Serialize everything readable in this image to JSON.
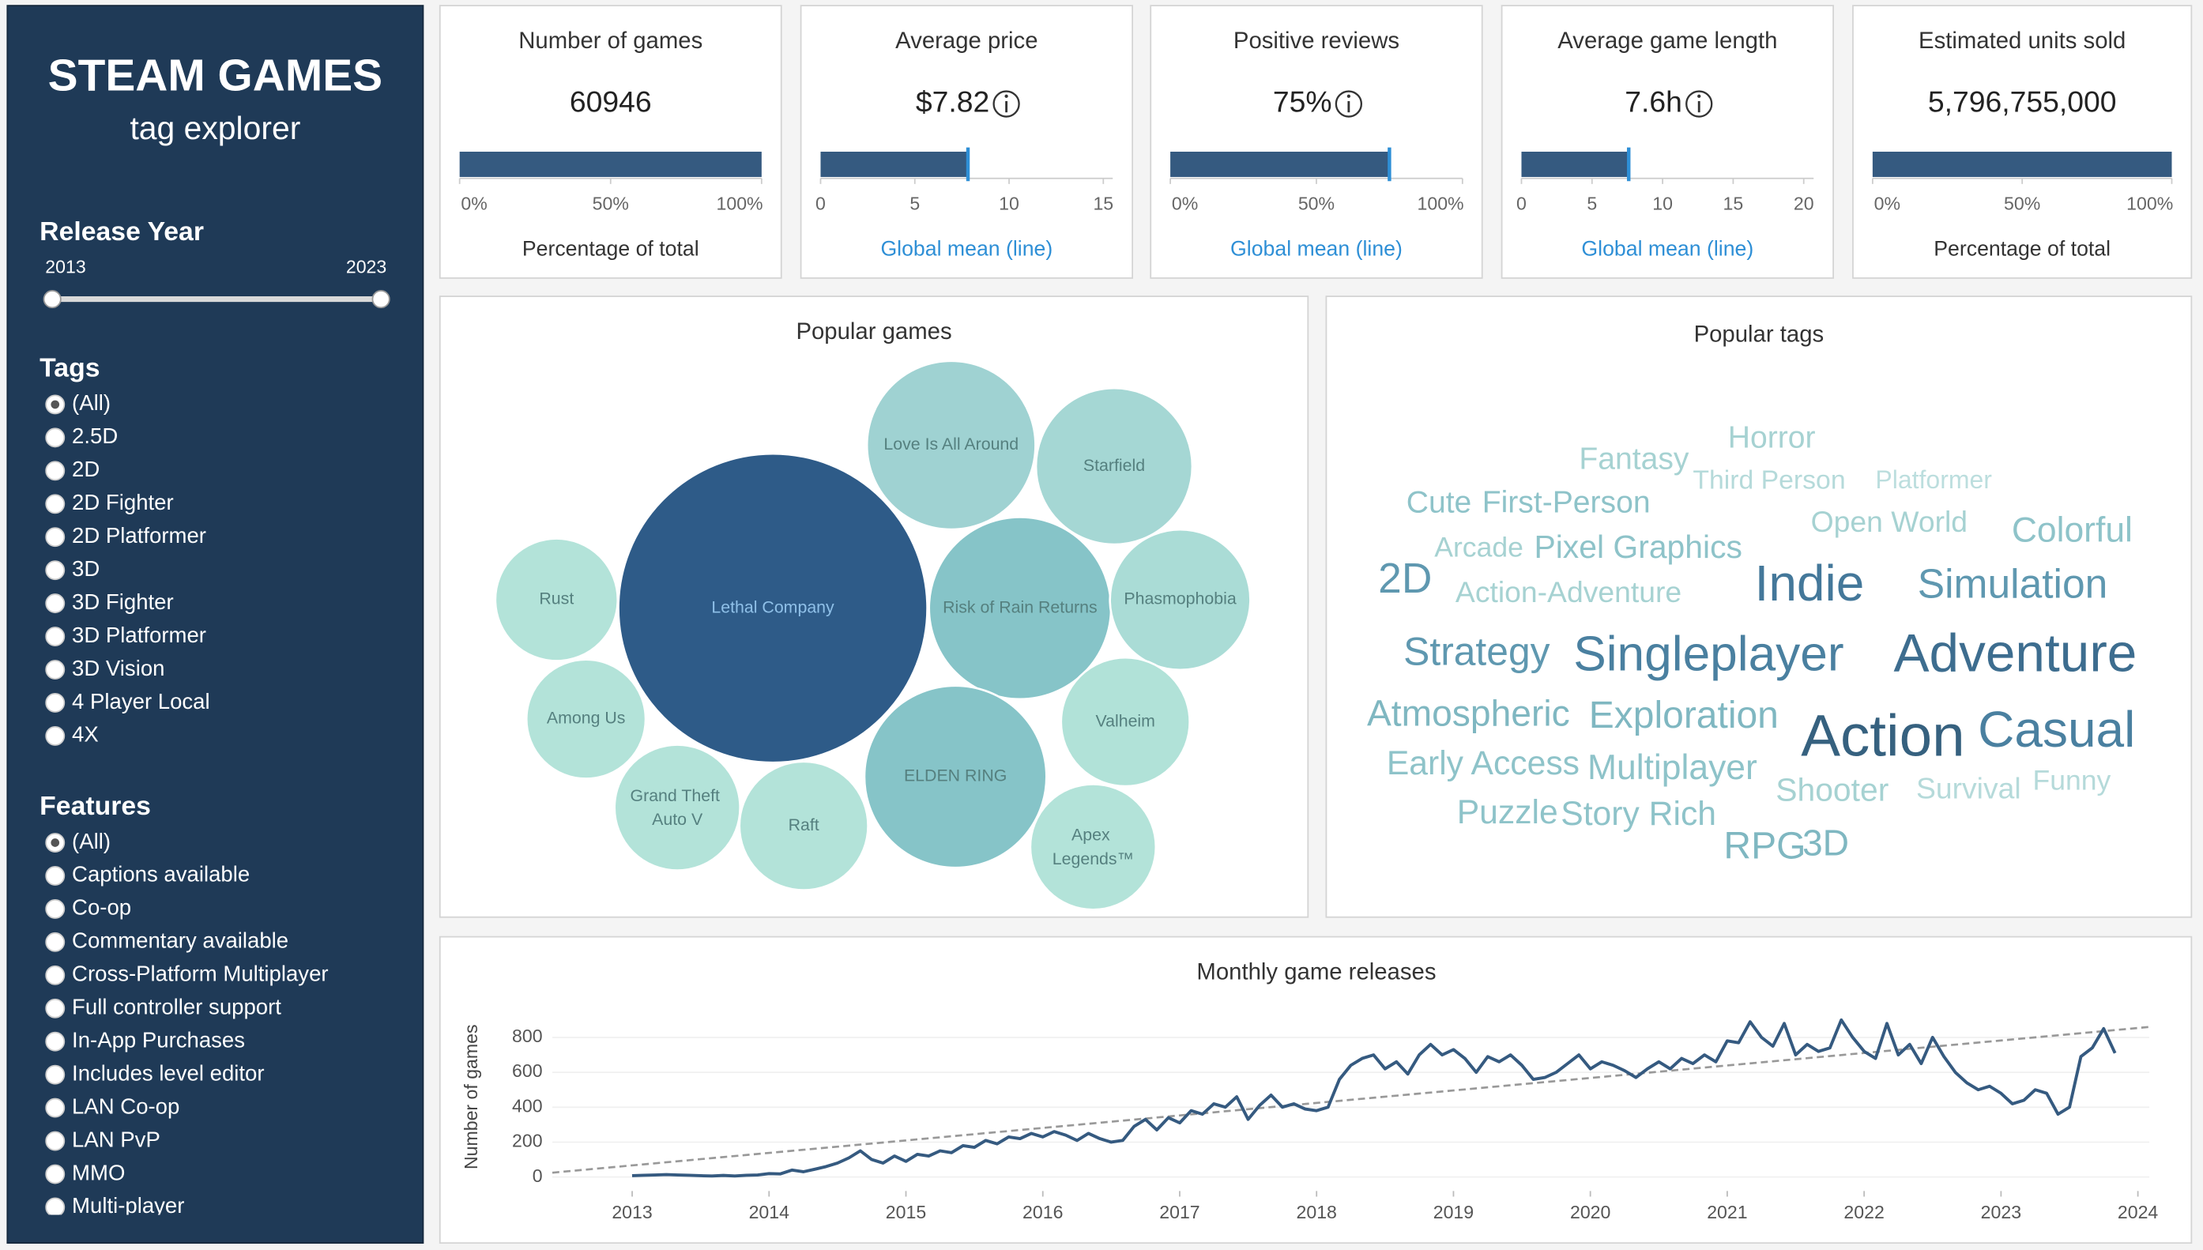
{
  "sidebar": {
    "title": "STEAM GAMES",
    "subtitle": "tag explorer",
    "release_year": {
      "label": "Release Year",
      "range": [
        2013,
        2023
      ]
    },
    "tags": {
      "label": "Tags",
      "selected": 0,
      "options": [
        "(All)",
        "2.5D",
        "2D",
        "2D Fighter",
        "2D Platformer",
        "3D",
        "3D Fighter",
        "3D Platformer",
        "3D Vision",
        "4 Player Local",
        "4X"
      ]
    },
    "features": {
      "label": "Features",
      "selected": 0,
      "options": [
        "(All)",
        "Captions available",
        "Co-op",
        "Commentary available",
        "Cross-Platform Multiplayer",
        "Full controller support",
        "In-App Purchases",
        "Includes level editor",
        "LAN Co-op",
        "LAN PvP",
        "MMO",
        "Multi-player"
      ]
    }
  },
  "chart_data": [
    {
      "type": "bullet",
      "title": "Number of games",
      "headline": 60946,
      "values": [
        100
      ],
      "xlim": [
        0,
        100
      ],
      "xticks": [
        {
          "value": 0,
          "label": "0%"
        },
        {
          "value": 50,
          "label": "50%"
        },
        {
          "value": 100,
          "label": "100%"
        }
      ],
      "xlabel": "Percentage of total",
      "color": "#355a80",
      "info": false
    },
    {
      "type": "bullet",
      "title": "Average price",
      "values": [
        7.82
      ],
      "value_labels": [
        "$7.82"
      ],
      "xlim": [
        0,
        15.5
      ],
      "xticks": [
        0,
        5,
        10,
        15
      ],
      "xlabel": "Global mean (line)",
      "color": "#355a80",
      "info": true
    },
    {
      "type": "bullet",
      "title": "Positive reviews",
      "values": [
        75
      ],
      "value_labels": [
        "75%"
      ],
      "xlim": [
        0,
        100
      ],
      "xticks": [
        {
          "value": 0,
          "label": "0%"
        },
        {
          "value": 50,
          "label": "50%"
        },
        {
          "value": 100,
          "label": "100%"
        }
      ],
      "xlabel": "Global mean (line)",
      "color": "#355a80",
      "info": true
    },
    {
      "type": "bullet",
      "title": "Average game length",
      "values": [
        7.6
      ],
      "value_labels": [
        "7.6h"
      ],
      "xlim": [
        0,
        20.7
      ],
      "xticks": [
        0,
        5,
        10,
        15,
        20
      ],
      "xlabel": "Global mean (line)",
      "color": "#355a80",
      "info": true
    },
    {
      "type": "bullet",
      "title": "Estimated units sold",
      "headline": "5,796,755,000",
      "values": [
        100
      ],
      "xlim": [
        0,
        100
      ],
      "xticks": [
        {
          "value": 0,
          "label": "0%"
        },
        {
          "value": 50,
          "label": "50%"
        },
        {
          "value": 100,
          "label": "100%"
        }
      ],
      "xlabel": "Percentage of total",
      "color": "#355a80",
      "info": false
    },
    {
      "type": "bubble",
      "title": "Popular games",
      "categories": [
        "Lethal Company",
        "Risk of Rain Returns",
        "ELDEN RING",
        "Love Is All Around",
        "Starfield",
        "Phasmophobia",
        "Valheim",
        "Rust",
        "Among Us",
        "Grand Theft Auto V",
        "Raft",
        "Apex Legends™"
      ],
      "values": [
        121,
        42,
        42,
        36,
        31,
        25,
        21,
        19,
        18,
        20,
        21,
        20
      ],
      "colors": [
        "#2e5b88",
        "#86c4c8",
        "#86c4c8",
        "#9fd2d2",
        "#a5d7d4",
        "#aadcd6",
        "#b1e2d8",
        "#b3e3d9",
        "#b3e3d9",
        "#b3e3d9",
        "#b3e3d9",
        "#b3e3d9"
      ]
    },
    {
      "type": "wordcloud",
      "title": "Popular tags",
      "categories": [
        "Horror",
        "Fantasy",
        "Third Person",
        "Platformer",
        "Cute",
        "First-Person",
        "Open World",
        "Colorful",
        "Arcade",
        "Pixel Graphics",
        "2D",
        "Action-Adventure",
        "Indie",
        "Simulation",
        "Strategy",
        "Singleplayer",
        "Adventure",
        "Atmospheric",
        "Exploration",
        "Action",
        "Casual",
        "Early Access",
        "Multiplayer",
        "Shooter",
        "Survival",
        "Funny",
        "Puzzle",
        "Story Rich",
        "RPG",
        "3D"
      ],
      "values": [
        22,
        22,
        19,
        18,
        22,
        22,
        21,
        25,
        20,
        23,
        30,
        21,
        36,
        29,
        28,
        35,
        38,
        26,
        27,
        42,
        36,
        24,
        25,
        23,
        21,
        20,
        24,
        24,
        27,
        26
      ],
      "colors": [
        "#a6d2d2",
        "#a6d2d2",
        "#b5dada",
        "#bcdede",
        "#8ec3c9",
        "#8ec3c9",
        "#a6d2d2",
        "#8ec3c9",
        "#a6d2d2",
        "#8ec3c9",
        "#5f98b0",
        "#a6d2d2",
        "#44789a",
        "#5f98b0",
        "#5f98b0",
        "#4a80a0",
        "#3d6d8f",
        "#7fb7c1",
        "#7fb7c1",
        "#36617f",
        "#4a80a0",
        "#8ec3c9",
        "#8ec3c9",
        "#a6d2d2",
        "#b5dada",
        "#b5dada",
        "#8ec3c9",
        "#8ec3c9",
        "#7fb7c1",
        "#7fb7c1"
      ]
    },
    {
      "type": "line",
      "title": "Monthly game releases",
      "ylabel": "Number of games",
      "color": "#355a80",
      "x": [
        "2013-01",
        "2013-02",
        "2013-03",
        "2013-04",
        "2013-05",
        "2013-06",
        "2013-07",
        "2013-08",
        "2013-09",
        "2013-10",
        "2013-11",
        "2013-12",
        "2014-01",
        "2014-02",
        "2014-03",
        "2014-04",
        "2014-05",
        "2014-06",
        "2014-07",
        "2014-08",
        "2014-09",
        "2014-10",
        "2014-11",
        "2014-12",
        "2015-01",
        "2015-02",
        "2015-03",
        "2015-04",
        "2015-05",
        "2015-06",
        "2015-07",
        "2015-08",
        "2015-09",
        "2015-10",
        "2015-11",
        "2015-12",
        "2016-01",
        "2016-02",
        "2016-03",
        "2016-04",
        "2016-05",
        "2016-06",
        "2016-07",
        "2016-08",
        "2016-09",
        "2016-10",
        "2016-11",
        "2016-12",
        "2017-01",
        "2017-02",
        "2017-03",
        "2017-04",
        "2017-05",
        "2017-06",
        "2017-07",
        "2017-08",
        "2017-09",
        "2017-10",
        "2017-11",
        "2017-12",
        "2018-01",
        "2018-02",
        "2018-03",
        "2018-04",
        "2018-05",
        "2018-06",
        "2018-07",
        "2018-08",
        "2018-09",
        "2018-10",
        "2018-11",
        "2018-12",
        "2019-01",
        "2019-02",
        "2019-03",
        "2019-04",
        "2019-05",
        "2019-06",
        "2019-07",
        "2019-08",
        "2019-09",
        "2019-10",
        "2019-11",
        "2019-12",
        "2020-01",
        "2020-02",
        "2020-03",
        "2020-04",
        "2020-05",
        "2020-06",
        "2020-07",
        "2020-08",
        "2020-09",
        "2020-10",
        "2020-11",
        "2020-12",
        "2021-01",
        "2021-02",
        "2021-03",
        "2021-04",
        "2021-05",
        "2021-06",
        "2021-07",
        "2021-08",
        "2021-09",
        "2021-10",
        "2021-11",
        "2021-12",
        "2022-01",
        "2022-02",
        "2022-03",
        "2022-04",
        "2022-05",
        "2022-06",
        "2022-07",
        "2022-08",
        "2022-09",
        "2022-10",
        "2022-11",
        "2022-12",
        "2023-01",
        "2023-02",
        "2023-03",
        "2023-04",
        "2023-05",
        "2023-06",
        "2023-07",
        "2023-08",
        "2023-09",
        "2023-10",
        "2023-11"
      ],
      "values": [
        8,
        10,
        12,
        14,
        12,
        10,
        8,
        6,
        9,
        6,
        10,
        12,
        20,
        18,
        40,
        30,
        45,
        60,
        80,
        110,
        150,
        100,
        80,
        120,
        90,
        130,
        120,
        150,
        140,
        180,
        170,
        210,
        190,
        230,
        220,
        250,
        230,
        260,
        240,
        210,
        250,
        220,
        200,
        210,
        290,
        330,
        270,
        340,
        310,
        380,
        360,
        420,
        400,
        460,
        330,
        410,
        470,
        400,
        420,
        390,
        380,
        400,
        560,
        640,
        680,
        700,
        620,
        660,
        590,
        700,
        760,
        700,
        730,
        680,
        600,
        690,
        660,
        700,
        640,
        560,
        570,
        600,
        650,
        700,
        620,
        660,
        640,
        610,
        570,
        620,
        660,
        620,
        680,
        650,
        700,
        660,
        780,
        770,
        890,
        800,
        750,
        880,
        700,
        760,
        720,
        740,
        900,
        800,
        720,
        680,
        880,
        700,
        760,
        650,
        800,
        690,
        600,
        540,
        500,
        520,
        480,
        420,
        440,
        500,
        480,
        360,
        400,
        690,
        740,
        850,
        710
      ],
      "trend": {
        "x": [
          "2012-06",
          "2024-02"
        ],
        "values": [
          25,
          860
        ],
        "color": "#999999"
      },
      "xlim": [
        "2012-06",
        "2024-02"
      ],
      "xticks": [
        2013,
        2014,
        2015,
        2016,
        2017,
        2018,
        2019,
        2020,
        2021,
        2022,
        2023,
        2024
      ],
      "ylim": [
        -80,
        950
      ],
      "yticks": [
        0,
        200,
        400,
        600,
        800
      ],
      "grid": true
    }
  ]
}
